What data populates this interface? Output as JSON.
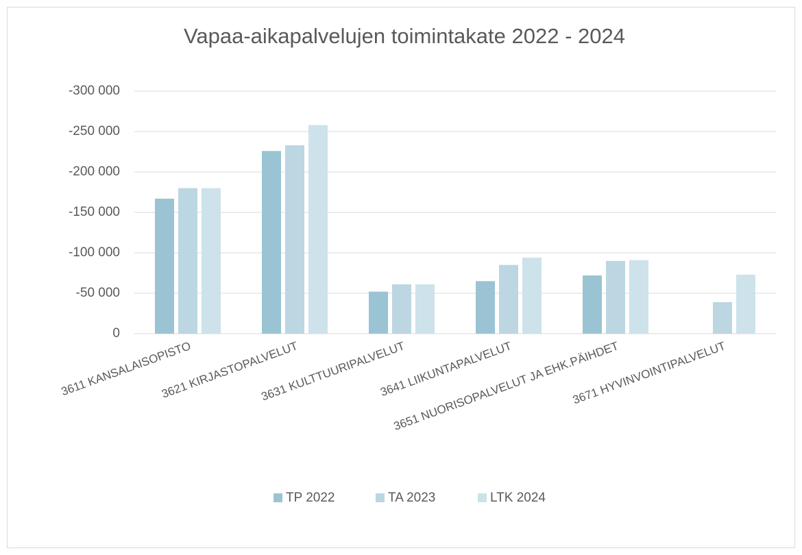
{
  "chart_data": {
    "type": "bar",
    "title": "Vapaa-aikapalvelujen toimintakate 2022 - 2024",
    "categories": [
      "3611 KANSALAISOPISTO",
      "3621 KIRJASTOPALVELUT",
      "3631 KULTTUURIPALVELUT",
      "3641 LIIKUNTAPALVELUT",
      "3651 NUORISOPALVELUT JA EHK.PÄIHDET",
      "3671 HYVINVOINTIPALVELUT"
    ],
    "series": [
      {
        "name": "TP 2022",
        "color": "#9ac4d4",
        "values": [
          -167000,
          -226000,
          -52000,
          -65000,
          -72000,
          null
        ]
      },
      {
        "name": "TA 2023",
        "color": "#bcd6e2",
        "values": [
          -180000,
          -233000,
          -61000,
          -85000,
          -90000,
          -39000
        ]
      },
      {
        "name": "LTK 2024",
        "color": "#cde2ea",
        "values": [
          -180000,
          -258000,
          -61000,
          -94000,
          -91000,
          -73000
        ]
      }
    ],
    "ylim": [
      0,
      -300000
    ],
    "yticks": [
      {
        "value": -300000,
        "label": "-300 000"
      },
      {
        "value": -250000,
        "label": "-250 000"
      },
      {
        "value": -200000,
        "label": "-200 000"
      },
      {
        "value": -150000,
        "label": "-150 000"
      },
      {
        "value": -100000,
        "label": "-100 000"
      },
      {
        "value": -50000,
        "label": "-50 000"
      },
      0
    ],
    "grid": true,
    "legend": "bottom"
  }
}
